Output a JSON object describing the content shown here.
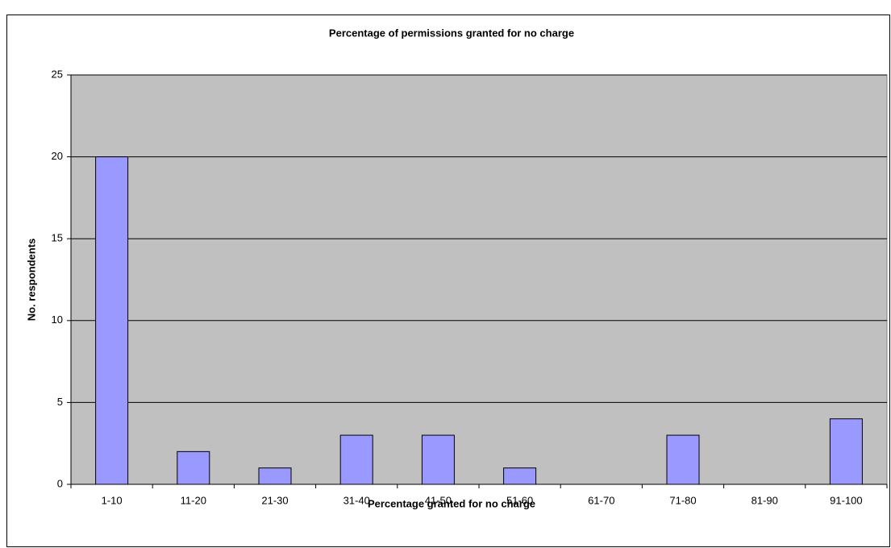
{
  "chart_data": {
    "type": "bar",
    "title": "Percentage of permissions granted for no charge",
    "x_label": "Percentage granted for no charge",
    "y_label": "No. respondents",
    "categories": [
      "1-10",
      "11-20",
      "21-30",
      "31-40",
      "41-50",
      "51-60",
      "61-70",
      "71-80",
      "81-90",
      "91-100"
    ],
    "values": [
      20,
      2,
      1,
      3,
      3,
      1,
      0,
      3,
      0,
      4
    ],
    "color": "#9999ff",
    "ylim": [
      0,
      25
    ],
    "yticks": [
      0,
      5,
      10,
      15,
      20,
      25
    ],
    "grid": true
  }
}
